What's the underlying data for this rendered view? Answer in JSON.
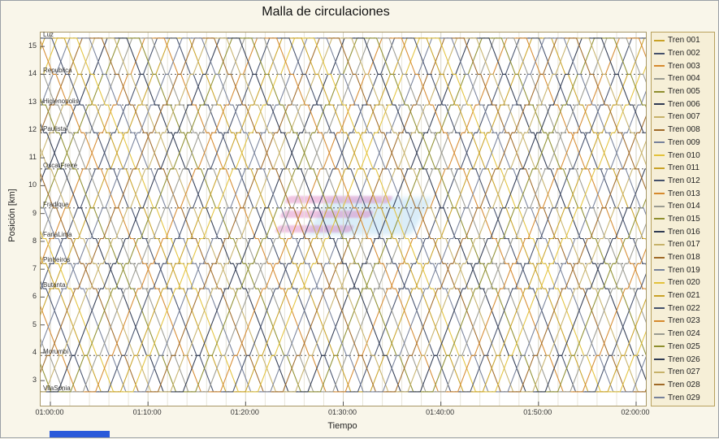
{
  "chart_data": {
    "type": "line",
    "title": "Malla de circulaciones",
    "xlabel": "Tiempo",
    "ylabel": "Posición [km]",
    "ylim": [
      2.1,
      15.5
    ],
    "y_ticks": [
      3,
      4,
      5,
      6,
      7,
      8,
      9,
      10,
      11,
      12,
      13,
      14,
      15
    ],
    "x_ticks": [
      {
        "min": 60,
        "label": "01:00:00"
      },
      {
        "min": 70,
        "label": "01:10:00"
      },
      {
        "min": 80,
        "label": "01:20:00"
      },
      {
        "min": 90,
        "label": "01:30:00"
      },
      {
        "min": 100,
        "label": "01:40:00"
      },
      {
        "min": 110,
        "label": "01:50:00"
      },
      {
        "min": 120,
        "label": "02:00:00"
      }
    ],
    "time_window": {
      "start_min": 59,
      "end_min": 121
    },
    "minor_grid_min": 2,
    "grid": true,
    "legend_position": "right",
    "stations": [
      {
        "name": "Luz",
        "km": 15.3
      },
      {
        "name": "Republica",
        "km": 14.0
      },
      {
        "name": "Higienopolis",
        "km": 12.9
      },
      {
        "name": "Paulista",
        "km": 11.9
      },
      {
        "name": "OscarFreire",
        "km": 10.6
      },
      {
        "name": "Fradique",
        "km": 9.2
      },
      {
        "name": "FariaLima",
        "km": 8.1
      },
      {
        "name": "Pinheiros",
        "km": 7.2
      },
      {
        "name": "Butanta",
        "km": 6.3
      },
      {
        "name": "Morumbi",
        "km": 3.9
      },
      {
        "name": "VilaSonia",
        "km": 2.6
      }
    ],
    "schedule": {
      "speed_kmh": 55,
      "station_dwell_min": 0.3,
      "terminal_dwell_min": 2.0,
      "pattern": "shuttle Luz <-> VilaSonia, trains evenly offset by headway = cycle / n_trains"
    },
    "trains": [
      {
        "name": "Tren 001",
        "color": "#c9a227"
      },
      {
        "name": "Tren 002",
        "color": "#44506b"
      },
      {
        "name": "Tren 003",
        "color": "#d68a2e"
      },
      {
        "name": "Tren 004",
        "color": "#9b9b91"
      },
      {
        "name": "Tren 005",
        "color": "#8f8f2f"
      },
      {
        "name": "Tren 006",
        "color": "#2f3a52"
      },
      {
        "name": "Tren 007",
        "color": "#c7b26a"
      },
      {
        "name": "Tren 008",
        "color": "#a06a28"
      },
      {
        "name": "Tren 009",
        "color": "#77829b"
      },
      {
        "name": "Tren 010",
        "color": "#e3c23a"
      },
      {
        "name": "Tren 011",
        "color": "#c9a227"
      },
      {
        "name": "Tren 012",
        "color": "#44506b"
      },
      {
        "name": "Tren 013",
        "color": "#d68a2e"
      },
      {
        "name": "Tren 014",
        "color": "#9b9b91"
      },
      {
        "name": "Tren 015",
        "color": "#8f8f2f"
      },
      {
        "name": "Tren 016",
        "color": "#2f3a52"
      },
      {
        "name": "Tren 017",
        "color": "#c7b26a"
      },
      {
        "name": "Tren 018",
        "color": "#a06a28"
      },
      {
        "name": "Tren 019",
        "color": "#77829b"
      },
      {
        "name": "Tren 020",
        "color": "#e3c23a"
      },
      {
        "name": "Tren 021",
        "color": "#c9a227"
      },
      {
        "name": "Tren 022",
        "color": "#44506b"
      },
      {
        "name": "Tren 023",
        "color": "#d68a2e"
      },
      {
        "name": "Tren 024",
        "color": "#9b9b91"
      },
      {
        "name": "Tren 025",
        "color": "#8f8f2f"
      },
      {
        "name": "Tren 026",
        "color": "#2f3a52"
      },
      {
        "name": "Tren 027",
        "color": "#c7b26a"
      },
      {
        "name": "Tren 028",
        "color": "#a06a28"
      },
      {
        "name": "Tren 029",
        "color": "#77829b"
      }
    ]
  },
  "watermark": {
    "stripe_color": "#d86ab5",
    "glow_color": "#86c5ea"
  },
  "colors": {
    "plot_background": "#ffffff",
    "frame": "#a89868",
    "legend_background": "#f6efd7",
    "legend_border": "#b9a25e",
    "grid_minor": "#e8e5d8",
    "grid_major": "#d6d2c2",
    "station_line": "#555555"
  }
}
